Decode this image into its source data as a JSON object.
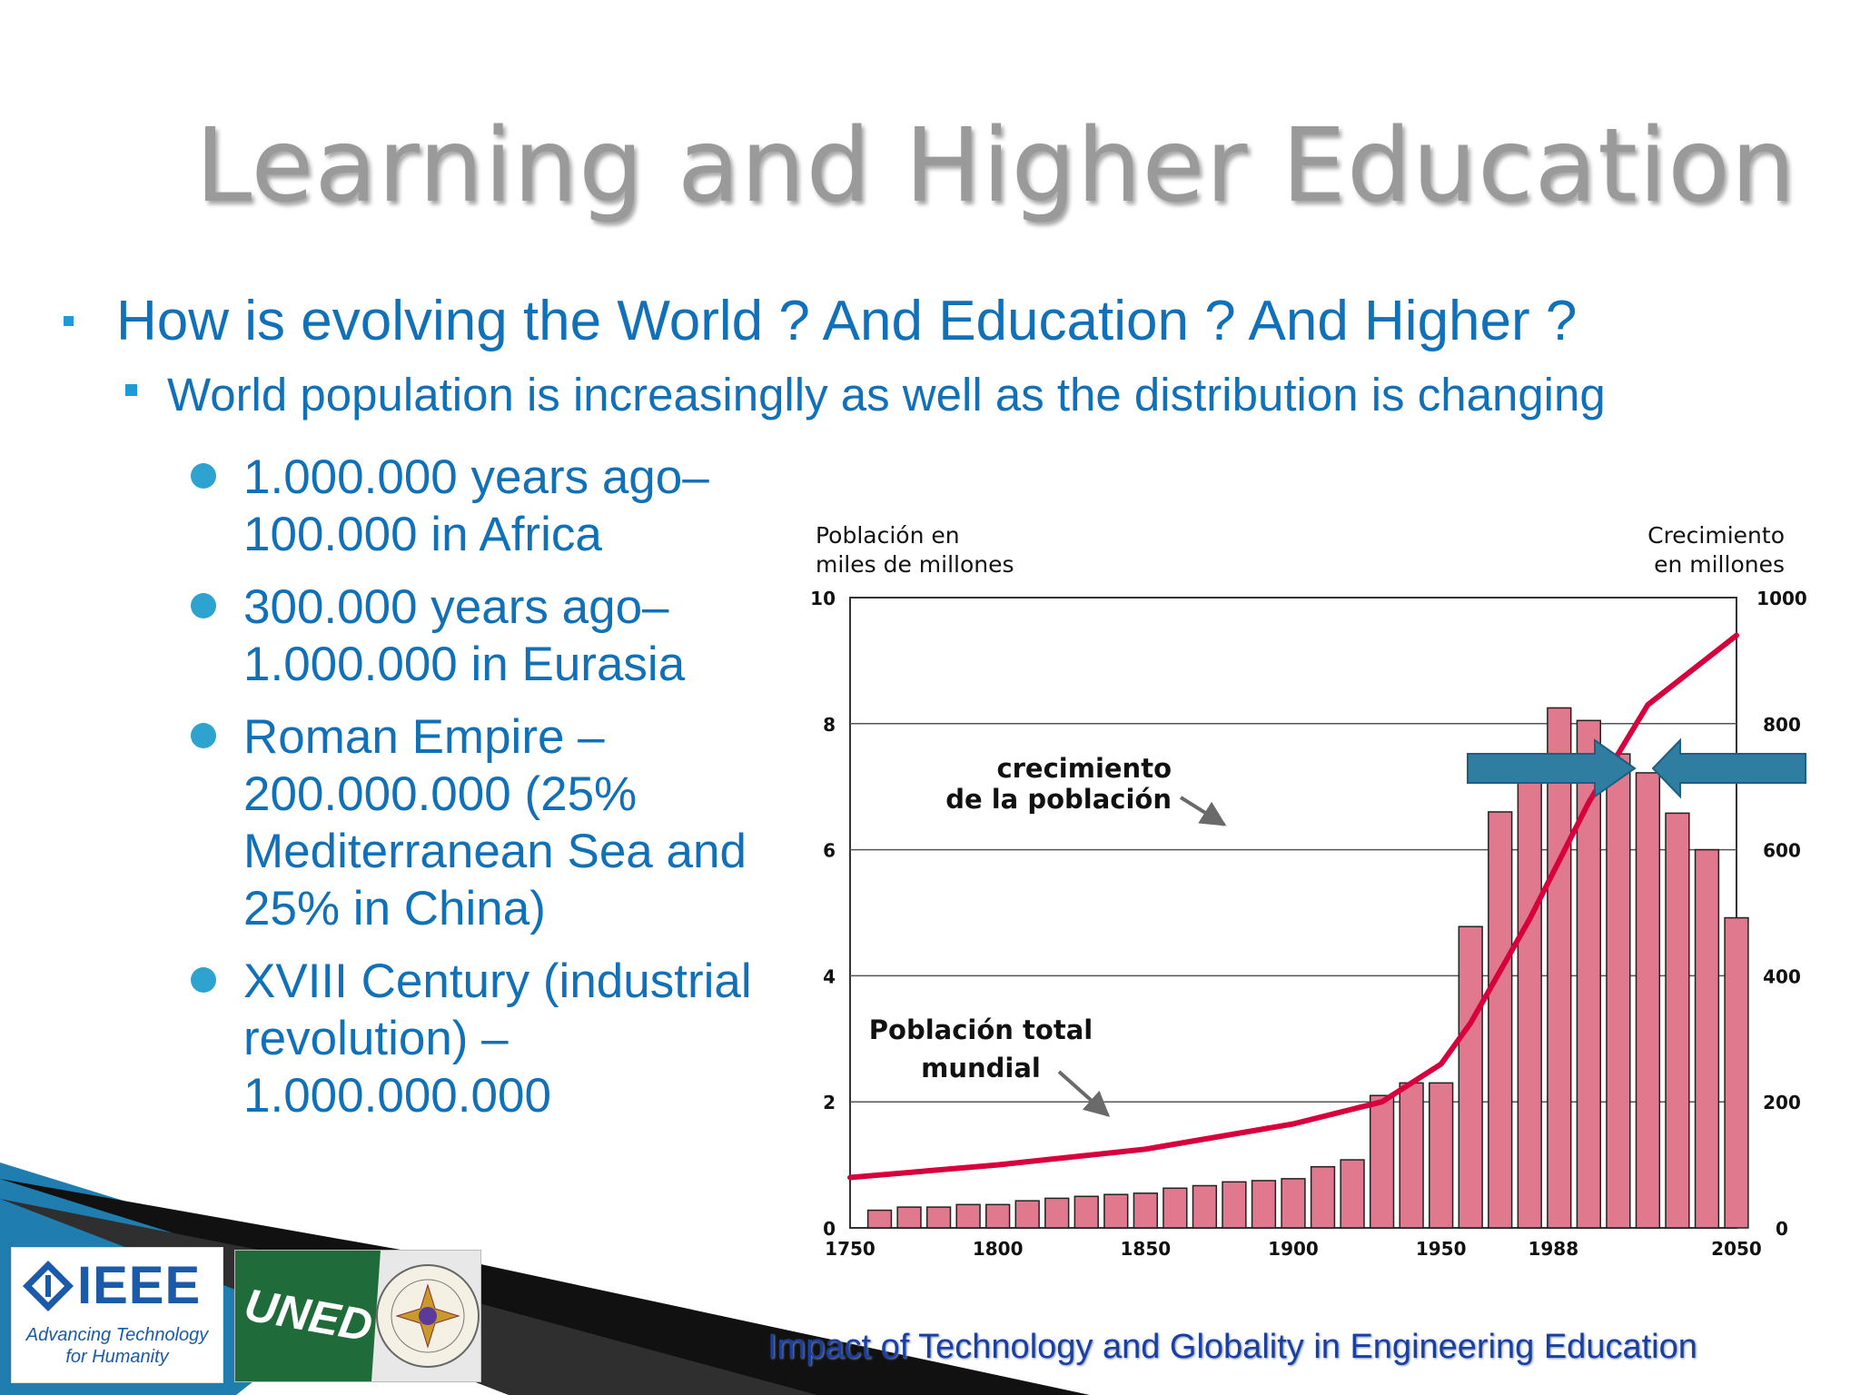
{
  "slide": {
    "title": "Learning and Higher Education",
    "level1": "How is evolving the World ? And Education ? And Higher ?",
    "level2": "World population is increasinglly as well as the distribution is changing",
    "bullets": [
      {
        "text": "1.000.000 years ago– 100.000 in Africa"
      },
      {
        "text": "300.000 years ago– 1.000.000 in Eurasia"
      },
      {
        "text": "Roman Empire – 200.000.000 (25% Mediterranean Sea and 25% in China)"
      },
      {
        "text": "XVIII Century (industrial revolution) – 1.000.000.000"
      }
    ],
    "footer": "Impact of Technology and Globality in Engineering Education",
    "logos": {
      "ieee": {
        "word": "IEEE",
        "tag1": "Advancing Technology",
        "tag2": "for Humanity"
      },
      "uned": {
        "word": "UNED"
      }
    }
  },
  "chart_data": {
    "type": "bar+line",
    "left_axis_title": [
      "Población en",
      "miles de millones"
    ],
    "right_axis_title": [
      "Crecimiento",
      "en millones"
    ],
    "left_ticks": [
      0,
      2,
      4,
      6,
      8,
      10
    ],
    "right_ticks": [
      0,
      200,
      400,
      600,
      800,
      1000
    ],
    "x_ticks": [
      "1750",
      "1800",
      "1850",
      "1900",
      "1950",
      "1988",
      "2050"
    ],
    "xlim": [
      1750,
      2050
    ],
    "ylim_left": [
      0,
      10
    ],
    "ylim_right": [
      0,
      1000
    ],
    "grid": true,
    "series": [
      {
        "name": "crecimiento de la población",
        "kind": "bar",
        "axis": "right",
        "color": "#e0788e",
        "x": [
          1760,
          1770,
          1780,
          1790,
          1800,
          1810,
          1820,
          1830,
          1840,
          1850,
          1860,
          1870,
          1880,
          1890,
          1900,
          1910,
          1920,
          1930,
          1940,
          1950,
          1960,
          1970,
          1980,
          1990,
          2000,
          2010,
          2020,
          2030,
          2040,
          2050
        ],
        "values": [
          28,
          33,
          33,
          37,
          37,
          43,
          47,
          50,
          53,
          55,
          63,
          67,
          73,
          75,
          78,
          97,
          108,
          210,
          230,
          230,
          478,
          660,
          745,
          825,
          805,
          752,
          722,
          658,
          600,
          492
        ]
      },
      {
        "name": "Población total mundial",
        "kind": "line",
        "axis": "left",
        "color": "#d8003c",
        "x": [
          1750,
          1800,
          1850,
          1900,
          1930,
          1950,
          1960,
          1980,
          2000,
          2020,
          2050
        ],
        "values": [
          0.8,
          1.0,
          1.25,
          1.65,
          2.0,
          2.6,
          3.25,
          4.9,
          6.75,
          8.3,
          9.4
        ]
      }
    ],
    "annotations": [
      {
        "text": [
          "crecimiento",
          "de la población"
        ]
      },
      {
        "text": [
          "Población total",
          "mundial"
        ]
      }
    ]
  },
  "colors": {
    "title": "#9a9a9a",
    "text_blue": "#1070b8",
    "bullet": "#2ea3cf",
    "bar": "#e0788e",
    "line": "#d8003c",
    "arrow": "#2f7ea2"
  }
}
